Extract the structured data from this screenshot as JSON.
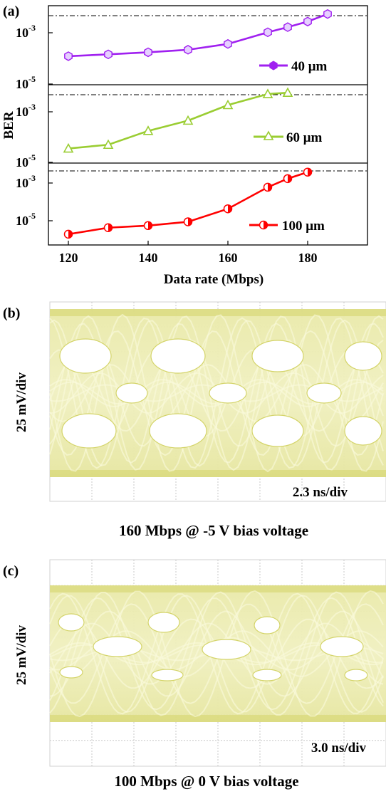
{
  "chart_data": [
    {
      "type": "line",
      "panel_label": "(a)",
      "xlabel": "Data rate (Mbps)",
      "ylabel": "BER",
      "xlim": [
        115,
        195
      ],
      "x_ticks": [
        120,
        140,
        160,
        180
      ],
      "y_tick_labels": {
        "upper": "10",
        "upper_exp": "-3",
        "lower": "10",
        "lower_exp": "-5"
      },
      "y_scale": "log",
      "grid": false,
      "legend_placement": "bottom-right of each subpanel",
      "threshold_line": "dash-dot at top of each subpanel",
      "series": [
        {
          "name": "40 μm",
          "color": "#a020f0",
          "marker": "hexagon",
          "ylim": [
            1e-05,
            0.005
          ],
          "x": [
            120,
            130,
            140,
            150,
            160,
            170,
            175,
            180,
            185
          ],
          "y": [
            8.5e-05,
            0.0001,
            0.00012,
            0.00015,
            0.00025,
            0.0007,
            0.0011,
            0.0018,
            0.0035
          ]
        },
        {
          "name": "60 μm",
          "color": "#9acd32",
          "marker": "triangle",
          "ylim": [
            1e-05,
            0.005
          ],
          "x": [
            120,
            130,
            140,
            150,
            160,
            170,
            175
          ],
          "y": [
            2.5e-05,
            3.5e-05,
            0.00012,
            0.0003,
            0.0012,
            0.0032,
            0.0036
          ]
        },
        {
          "name": "100 μm",
          "color": "#ff0000",
          "marker": "half-filled circle",
          "ylim": [
            2e-06,
            0.005
          ],
          "x": [
            120,
            130,
            140,
            150,
            160,
            170,
            175,
            180
          ],
          "y": [
            4e-06,
            8e-06,
            1e-05,
            1.5e-05,
            6e-05,
            0.0006,
            0.0015,
            0.003
          ]
        }
      ]
    },
    {
      "type": "eye-diagram",
      "panel_label": "(b)",
      "ylabel": "25 mV/div",
      "time_scale": "2.3 ns/div",
      "caption": "160 Mbps @ -5 V bias voltage",
      "color": "#d4d46a"
    },
    {
      "type": "eye-diagram",
      "panel_label": "(c)",
      "ylabel": "25 mV/div",
      "time_scale": "3.0 ns/div",
      "caption": "100 Mbps @ 0 V bias voltage",
      "color": "#d4d46a"
    }
  ]
}
